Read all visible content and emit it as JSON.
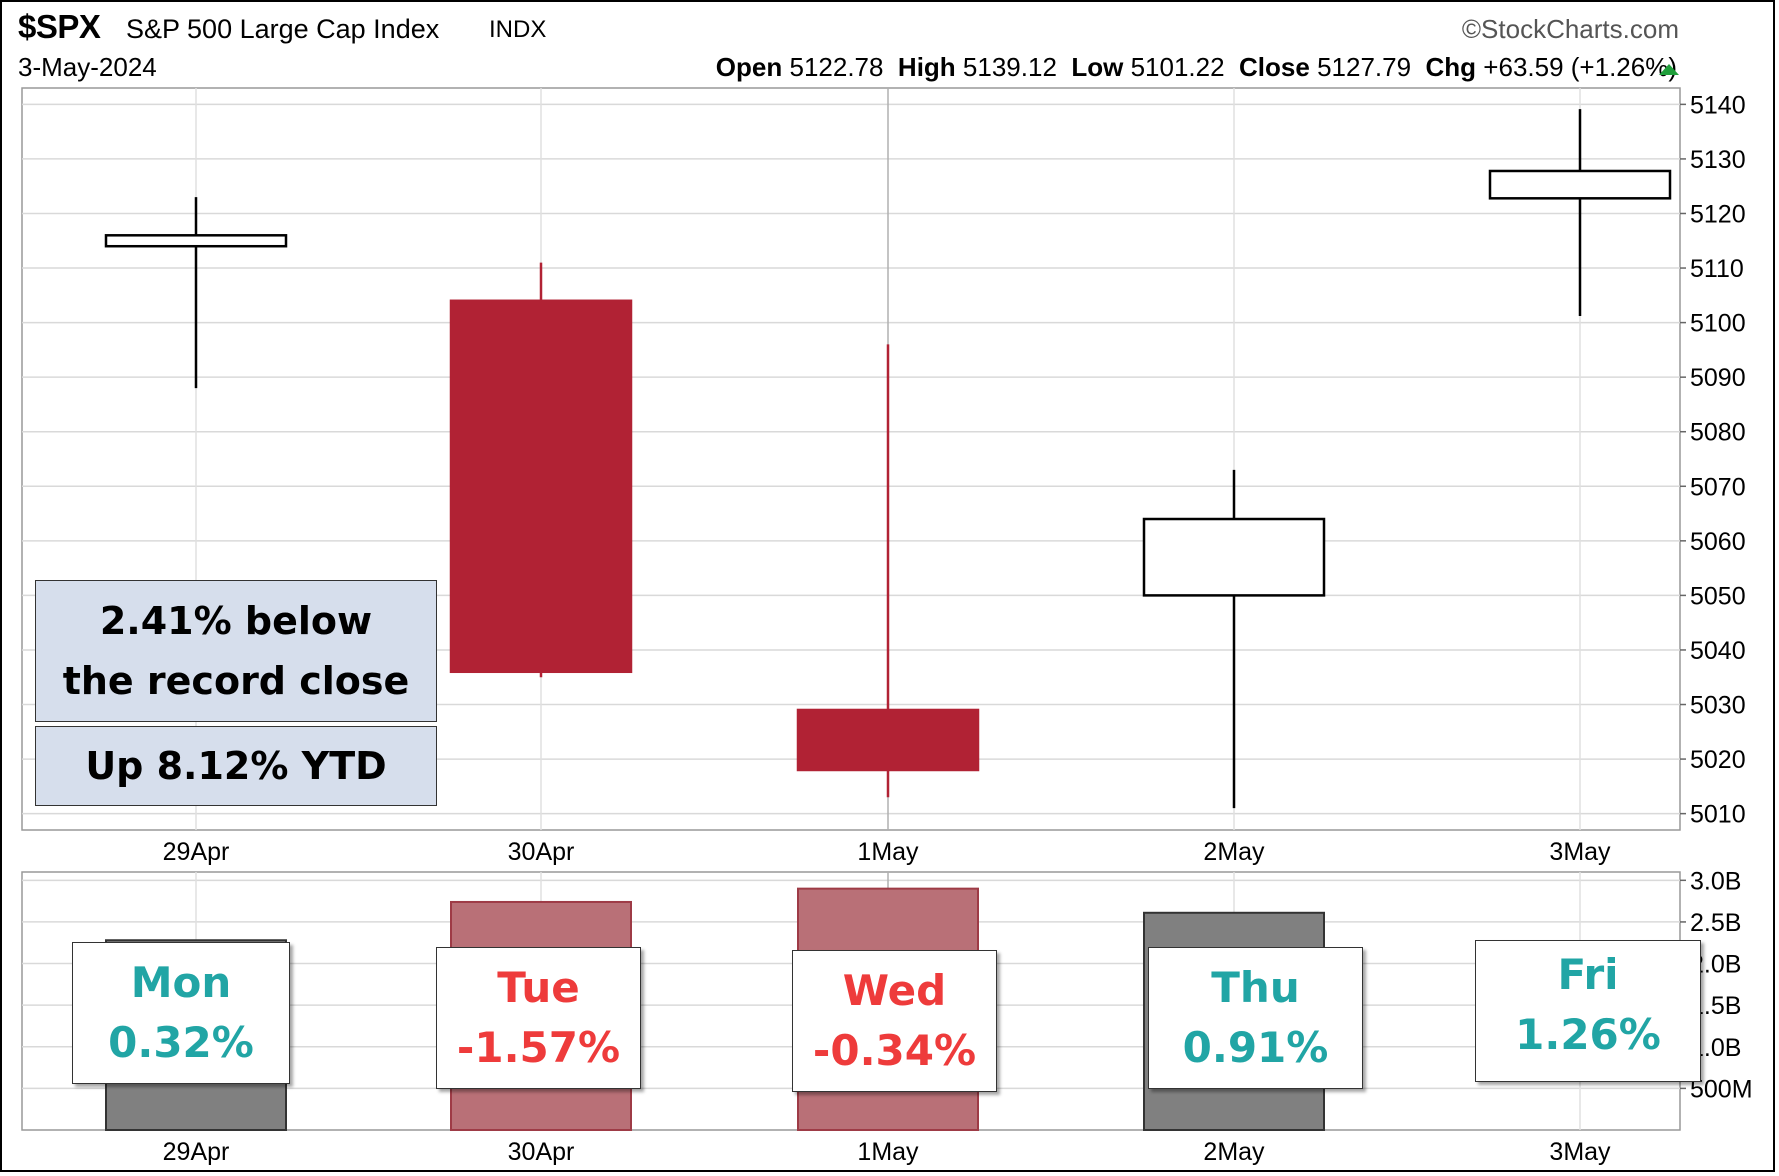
{
  "header": {
    "symbol": "$SPX",
    "name": "S&P 500 Large Cap Index",
    "exchange": "INDX",
    "source": "©StockCharts.com",
    "date": "3-May-2024",
    "open_label": "Open",
    "open_value": "5122.78",
    "high_label": "High",
    "high_value": "5139.12",
    "low_label": "Low",
    "low_value": "5101.22",
    "close_label": "Close",
    "close_value": "5127.79",
    "chg_label": "Chg",
    "chg_value": "+63.59 (+1.26%)"
  },
  "annotations": {
    "record_line1": "2.41% below",
    "record_line2": "the record close",
    "ytd": "Up 8.12% YTD"
  },
  "colors": {
    "up": "#ffffff",
    "down": "#b12234",
    "volume_up": "#808080",
    "volume_down": "#b97077",
    "positive_text": "#21a5a5",
    "negative_text": "#ee3b3b"
  },
  "day_labels": [
    {
      "day": "Mon",
      "pct": "0.32%",
      "sign": "positive"
    },
    {
      "day": "Tue",
      "pct": "-1.57%",
      "sign": "negative"
    },
    {
      "day": "Wed",
      "pct": "-0.34%",
      "sign": "negative"
    },
    {
      "day": "Thu",
      "pct": "0.91%",
      "sign": "positive"
    },
    {
      "day": "Fri",
      "pct": "1.26%",
      "sign": "positive"
    }
  ],
  "chart_data": [
    {
      "type": "candlestick",
      "title": "",
      "categories": [
        "29Apr",
        "30Apr",
        "1May",
        "2May",
        "3May"
      ],
      "ohlc": [
        {
          "open": 5114,
          "high": 5123,
          "low": 5088,
          "close": 5116
        },
        {
          "open": 5104,
          "high": 5111,
          "low": 5035,
          "close": 5036
        },
        {
          "open": 5029,
          "high": 5096,
          "low": 5013,
          "close": 5018
        },
        {
          "open": 5050,
          "high": 5073,
          "low": 5011,
          "close": 5064
        },
        {
          "open": 5122.78,
          "high": 5139.12,
          "low": 5101.22,
          "close": 5127.79
        }
      ],
      "ylim": [
        5007,
        5143
      ],
      "yticks": [
        5010,
        5020,
        5030,
        5040,
        5050,
        5060,
        5070,
        5080,
        5090,
        5100,
        5110,
        5120,
        5130,
        5140
      ],
      "grid": true
    },
    {
      "type": "bar",
      "title": "",
      "categories": [
        "29Apr",
        "30Apr",
        "1May",
        "2May",
        "3May"
      ],
      "values": [
        2.28,
        2.74,
        2.9,
        2.61,
        0
      ],
      "direction": [
        "up",
        "down",
        "down",
        "up",
        "up"
      ],
      "ylim": [
        0,
        3.1
      ],
      "yticks": [
        {
          "value": 0.5,
          "label": "500M"
        },
        {
          "value": 1.0,
          "label": "1.0B"
        },
        {
          "value": 1.5,
          "label": "1.5B"
        },
        {
          "value": 2.0,
          "label": "2.0B"
        },
        {
          "value": 2.5,
          "label": "2.5B"
        },
        {
          "value": 3.0,
          "label": "3.0B"
        }
      ],
      "grid": true
    }
  ]
}
